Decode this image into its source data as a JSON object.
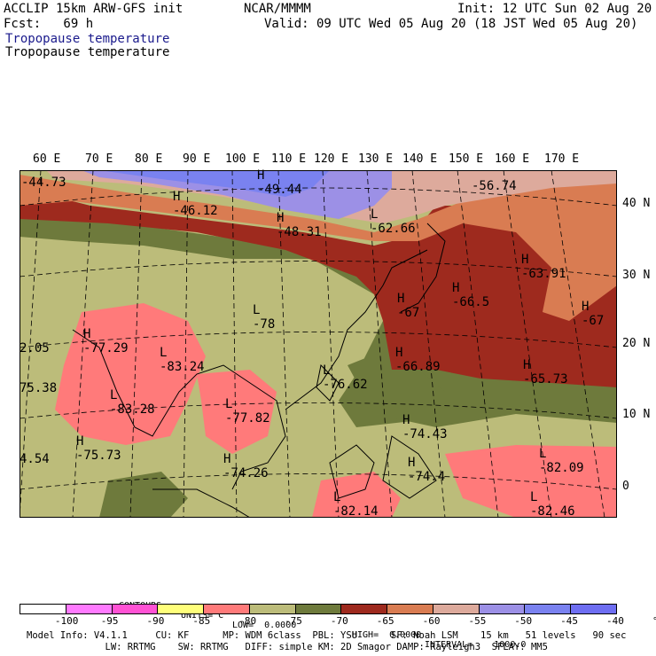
{
  "header": {
    "model": "ACCLIP 15km ARW-GFS init",
    "org": "NCAR/MMMM",
    "init": "Init: 12 UTC Sun 02 Aug 20",
    "fcst": "Fcst:   69 h",
    "valid": "Valid: 09 UTC Wed 05 Aug 20 (18 JST Wed 05 Aug 20)",
    "field_blue": "Tropopause temperature",
    "field_black": "Tropopause temperature"
  },
  "longitudes": [
    "60 E",
    "70 E",
    "80 E",
    "90 E",
    "100 E",
    "110 E",
    "120 E",
    "130 E",
    "140 E",
    "150 E",
    "160 E",
    "170 E"
  ],
  "latitudes": [
    "40 N",
    "30 N",
    "20 N",
    "10 N",
    "0"
  ],
  "map_labels": [
    {
      "mark": "",
      "value": "-44.73"
    },
    {
      "mark": "H",
      "value": "-46.12"
    },
    {
      "mark": "H",
      "value": "-49.44"
    },
    {
      "mark": "H",
      "value": "-48.31"
    },
    {
      "mark": "L",
      "value": "-62.66"
    },
    {
      "mark": "",
      "value": "-56.74"
    },
    {
      "mark": "H",
      "value": "-63.91"
    },
    {
      "mark": "H",
      "value": "-66.5"
    },
    {
      "mark": "H",
      "value": "-67"
    },
    {
      "mark": "H",
      "value": "-67"
    },
    {
      "mark": "L",
      "value": "-78"
    },
    {
      "mark": "H",
      "value": "-77.29"
    },
    {
      "mark": "L",
      "value": "-83.24"
    },
    {
      "mark": "",
      "value": "2.05"
    },
    {
      "mark": "",
      "value": "75.38"
    },
    {
      "mark": "L",
      "value": "-83.28"
    },
    {
      "mark": "L",
      "value": "-77.82"
    },
    {
      "mark": "L",
      "value": "-76.62"
    },
    {
      "mark": "H",
      "value": "-66.89"
    },
    {
      "mark": "H",
      "value": "-65.73"
    },
    {
      "mark": "H",
      "value": "-74.43"
    },
    {
      "mark": "H",
      "value": "-75.73"
    },
    {
      "mark": "",
      "value": "4.54"
    },
    {
      "mark": "H",
      "value": "-74.26"
    },
    {
      "mark": "H",
      "value": "-74.4"
    },
    {
      "mark": "L",
      "value": "-82.09"
    },
    {
      "mark": "L",
      "value": "-82.14"
    },
    {
      "mark": "L",
      "value": "-82.46"
    }
  ],
  "contours": {
    "label": "CONTOURS:",
    "units": "UNITS=°C",
    "low": "LOW=  0.0000",
    "high": "HIGH=  0.0000",
    "interval": "INTERVAL=    1000.0"
  },
  "colorbar": {
    "colors": [
      "#ffffff",
      "#ff7aff",
      "#ff52d4",
      "#ffff7a",
      "#ff7a7a",
      "#bcbc7a",
      "#6e7a3c",
      "#9e2a1e",
      "#d97c52",
      "#ddaa9c",
      "#9c90e6",
      "#7a82f0",
      "#6e6ef2"
    ],
    "ticks": [
      "-100",
      "-95",
      "-90",
      "-85",
      "-80",
      "-75",
      "-70",
      "-65",
      "-60",
      "-55",
      "-50",
      "-45",
      "-40",
      "°C"
    ]
  },
  "footer": {
    "line1": "Model Info: V4.1.1     CU: KF      MP: WDM 6class  PBL: YSU      SF: Noah LSM    15 km   51 levels   90 sec",
    "line2": "              LW: RRTMG    SW: RRTMG   DIFF: simple KM: 2D Smagor DAMP: Rayleigh3  SFLAY: MM5"
  }
}
